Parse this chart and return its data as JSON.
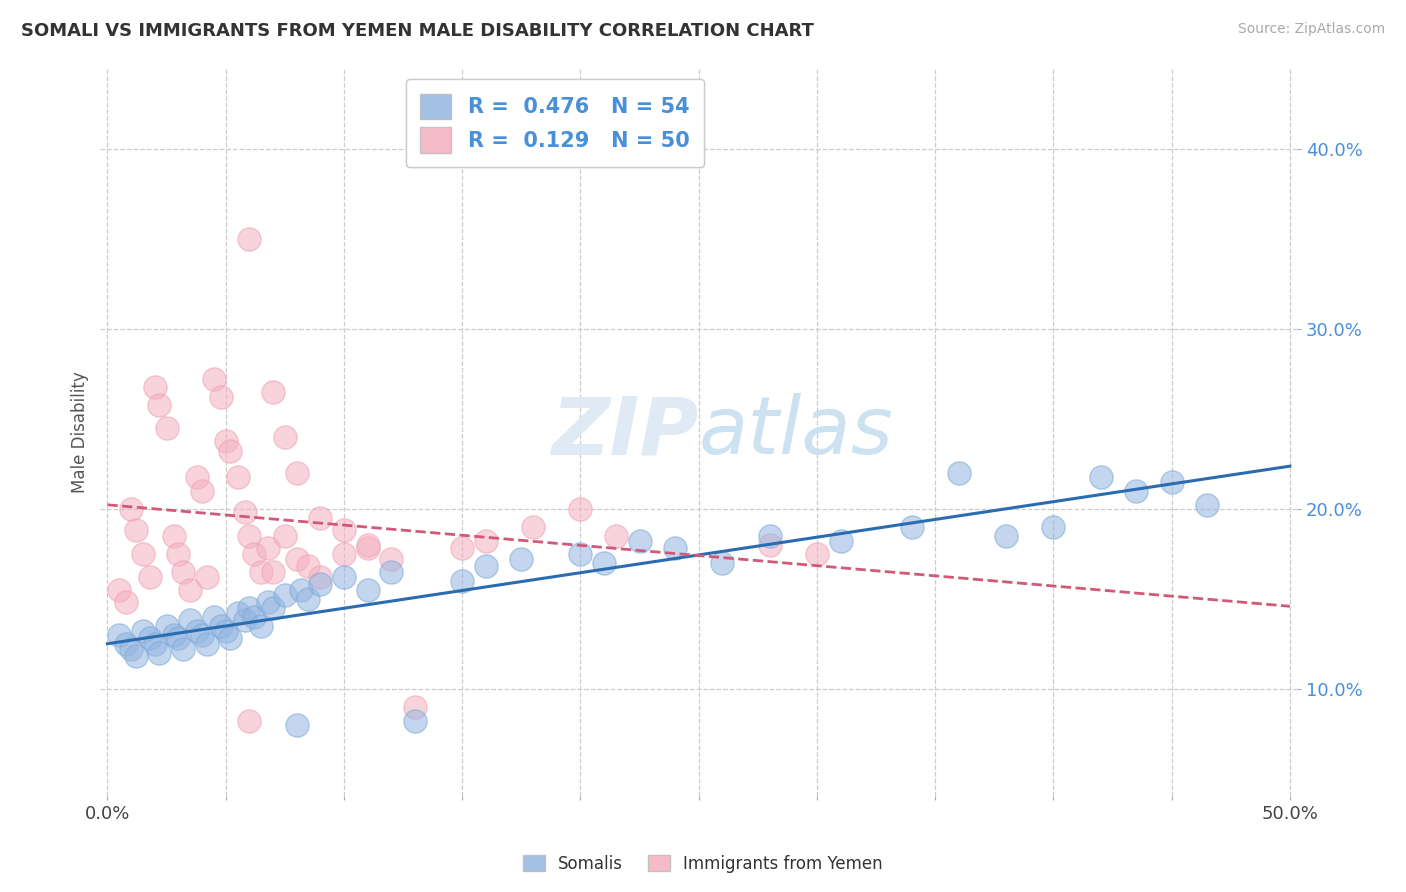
{
  "title": "SOMALI VS IMMIGRANTS FROM YEMEN MALE DISABILITY CORRELATION CHART",
  "source": "Source: ZipAtlas.com",
  "ylabel": "Male Disability",
  "xlim": [
    -0.003,
    0.503
  ],
  "ylim": [
    0.04,
    0.445
  ],
  "xticks": [
    0.0,
    0.05,
    0.1,
    0.15,
    0.2,
    0.25,
    0.3,
    0.35,
    0.4,
    0.45,
    0.5
  ],
  "xtick_labels_show": [
    true,
    false,
    false,
    false,
    false,
    false,
    false,
    false,
    false,
    false,
    true
  ],
  "xtick_labels": [
    "0.0%",
    "",
    "",
    "",
    "",
    "",
    "",
    "",
    "",
    "",
    "50.0%"
  ],
  "yticks": [
    0.1,
    0.2,
    0.3,
    0.4
  ],
  "ytick_labels": [
    "10.0%",
    "20.0%",
    "30.0%",
    "40.0%"
  ],
  "grid_color": "#cccccc",
  "bg_color": "#ffffff",
  "somali_color": "#93b5e1",
  "somali_edge": "#7aaad8",
  "yemen_color": "#f5afc0",
  "yemen_edge": "#eda0b5",
  "somali_line_color": "#2b6cb0",
  "yemen_line_color": "#d05878",
  "ytick_color": "#4a90d9",
  "xtick_color": "#444444",
  "somali_R": 0.476,
  "somali_N": 54,
  "yemen_R": 0.129,
  "yemen_N": 50,
  "legend_labels_bottom": [
    "Somalis",
    "Immigrants from Yemen"
  ],
  "watermark": "ZIPatlas",
  "somali_x": [
    0.005,
    0.008,
    0.01,
    0.012,
    0.015,
    0.018,
    0.02,
    0.022,
    0.025,
    0.028,
    0.03,
    0.032,
    0.035,
    0.038,
    0.04,
    0.042,
    0.045,
    0.048,
    0.05,
    0.052,
    0.055,
    0.058,
    0.06,
    0.062,
    0.065,
    0.068,
    0.07,
    0.075,
    0.08,
    0.082,
    0.085,
    0.09,
    0.1,
    0.11,
    0.12,
    0.13,
    0.15,
    0.16,
    0.175,
    0.2,
    0.21,
    0.225,
    0.24,
    0.26,
    0.28,
    0.31,
    0.34,
    0.36,
    0.38,
    0.4,
    0.42,
    0.435,
    0.45,
    0.465
  ],
  "somali_y": [
    0.13,
    0.125,
    0.122,
    0.118,
    0.132,
    0.128,
    0.125,
    0.12,
    0.135,
    0.13,
    0.128,
    0.122,
    0.138,
    0.132,
    0.13,
    0.125,
    0.14,
    0.135,
    0.132,
    0.128,
    0.142,
    0.138,
    0.145,
    0.14,
    0.135,
    0.148,
    0.145,
    0.152,
    0.08,
    0.155,
    0.15,
    0.158,
    0.162,
    0.155,
    0.165,
    0.082,
    0.16,
    0.168,
    0.172,
    0.175,
    0.17,
    0.182,
    0.178,
    0.17,
    0.185,
    0.182,
    0.19,
    0.22,
    0.185,
    0.19,
    0.218,
    0.21,
    0.215,
    0.202
  ],
  "yemen_x": [
    0.005,
    0.008,
    0.01,
    0.012,
    0.015,
    0.018,
    0.02,
    0.022,
    0.025,
    0.028,
    0.03,
    0.032,
    0.035,
    0.038,
    0.04,
    0.042,
    0.045,
    0.048,
    0.05,
    0.052,
    0.055,
    0.058,
    0.06,
    0.062,
    0.065,
    0.068,
    0.07,
    0.075,
    0.08,
    0.085,
    0.09,
    0.1,
    0.11,
    0.12,
    0.13,
    0.15,
    0.16,
    0.18,
    0.2,
    0.215,
    0.06,
    0.07,
    0.075,
    0.08,
    0.09,
    0.1,
    0.11,
    0.28,
    0.3,
    0.06
  ],
  "yemen_y": [
    0.155,
    0.148,
    0.2,
    0.188,
    0.175,
    0.162,
    0.268,
    0.258,
    0.245,
    0.185,
    0.175,
    0.165,
    0.155,
    0.218,
    0.21,
    0.162,
    0.272,
    0.262,
    0.238,
    0.232,
    0.218,
    0.198,
    0.185,
    0.175,
    0.165,
    0.178,
    0.165,
    0.185,
    0.172,
    0.168,
    0.162,
    0.175,
    0.178,
    0.172,
    0.09,
    0.178,
    0.182,
    0.19,
    0.2,
    0.185,
    0.35,
    0.265,
    0.24,
    0.22,
    0.195,
    0.188,
    0.18,
    0.18,
    0.175,
    0.082
  ]
}
